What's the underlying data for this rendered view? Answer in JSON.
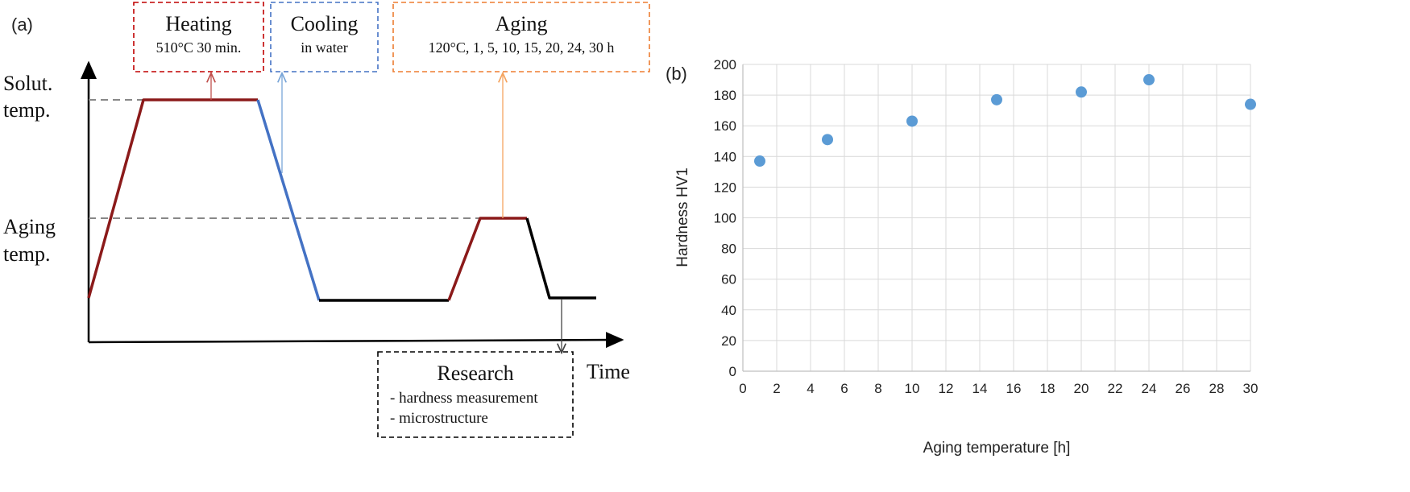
{
  "panel_a": {
    "label": "(a)",
    "y_labels": {
      "solut_line1": "Solut.",
      "solut_line2": "temp.",
      "aging_line1": "Aging",
      "aging_line2": "temp."
    },
    "x_label": "Time",
    "boxes": {
      "heating": {
        "title": "Heating",
        "detail": "510°C 30 min."
      },
      "cooling": {
        "title": "Cooling",
        "detail": "in water"
      },
      "aging": {
        "title": "Aging",
        "detail": "120°C, 1, 5, 10, 15, 20, 24, 30 h"
      },
      "research": {
        "title": "Research",
        "line1": "- hardness measurement",
        "line2": "- microstructure"
      }
    },
    "colors": {
      "heating": "#8b1a1a",
      "cooling": "#4472c4",
      "aging_arrow": "#f4a460",
      "research": "#000000",
      "heating_box": "#c00000",
      "cooling_box": "#4472c4",
      "aging_box": "#ed7d31"
    }
  },
  "chart_data": {
    "type": "scatter",
    "panel_label": "(b)",
    "xlabel": "Aging temperature [h]",
    "ylabel": "Hardness HV1",
    "xlim": [
      0,
      30
    ],
    "ylim": [
      0,
      200
    ],
    "xticks": [
      0,
      2,
      4,
      6,
      8,
      10,
      12,
      14,
      16,
      18,
      20,
      22,
      24,
      26,
      28,
      30
    ],
    "yticks": [
      0,
      20,
      40,
      60,
      80,
      100,
      120,
      140,
      160,
      180,
      200
    ],
    "grid": true,
    "color": "#5b9bd5",
    "points": [
      {
        "x": 1,
        "y": 137
      },
      {
        "x": 5,
        "y": 151
      },
      {
        "x": 10,
        "y": 163
      },
      {
        "x": 15,
        "y": 177
      },
      {
        "x": 20,
        "y": 182
      },
      {
        "x": 24,
        "y": 190
      },
      {
        "x": 30,
        "y": 174
      }
    ]
  }
}
